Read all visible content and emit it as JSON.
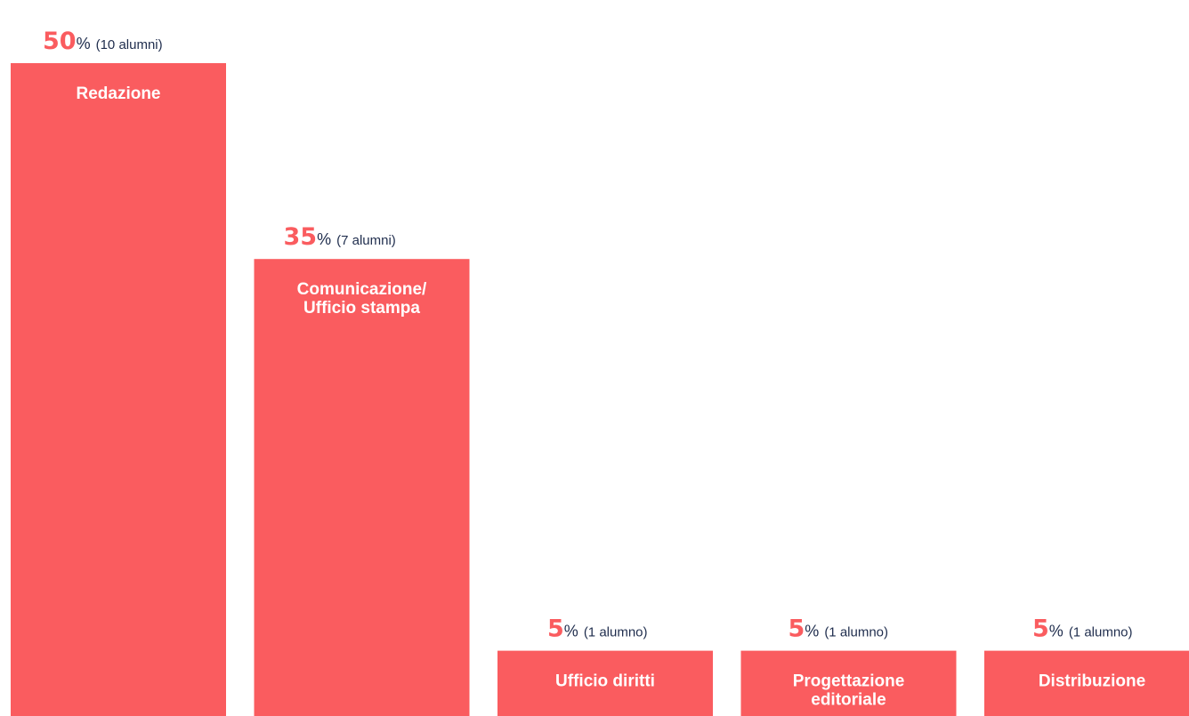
{
  "colors": {
    "bar": "#fa5c5f",
    "percent_number": "#fa5c5f",
    "percent_sign": "#1f2d4d",
    "count_text": "#1f2d4d",
    "label_text": "#ffffff",
    "background": "#ffffff"
  },
  "chart_data": {
    "type": "bar",
    "categories": [
      "Redazione",
      "Comunicazione/\nUfficio stampa",
      "Ufficio diritti",
      "Progettazione\neditoriale",
      "Distribuzione"
    ],
    "values": [
      50,
      35,
      5,
      5,
      5
    ],
    "value_unit": "%",
    "counts": [
      "(10 alumni)",
      "(7 alumni)",
      "(1 alumno)",
      "(1 alumno)",
      "(1 alumno)"
    ],
    "title": "",
    "xlabel": "",
    "ylabel": "",
    "ylim": [
      0,
      50
    ],
    "grid": false,
    "legend": "none"
  }
}
